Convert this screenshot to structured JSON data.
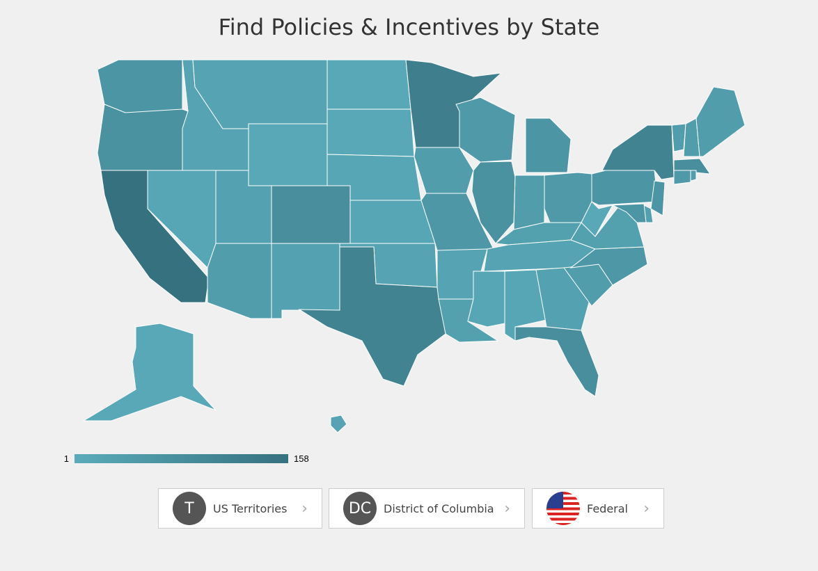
{
  "title": "Find Policies & Incentives by State",
  "map": {
    "type": "choropleth",
    "values": [
      60,
      70,
      158,
      15,
      20,
      20,
      10,
      25,
      80,
      40,
      25,
      10,
      10,
      15,
      15,
      20,
      110,
      120,
      40,
      55,
      20,
      30,
      50,
      70,
      60,
      40,
      50,
      30,
      20,
      15,
      15,
      25,
      80,
      40,
      55,
      30,
      10,
      60,
      110,
      40,
      40,
      40,
      80,
      50,
      40,
      60,
      30,
      60,
      10,
      20
    ],
    "colors": [
      "#5aabba",
      "#36717f"
    ],
    "legend": {
      "min": 1,
      "max": 158
    }
  },
  "buttons": [
    {
      "icon": "T",
      "label": "US Territories"
    },
    {
      "icon": "DC",
      "label": "District of Columbia"
    },
    {
      "label": "Federal"
    }
  ]
}
